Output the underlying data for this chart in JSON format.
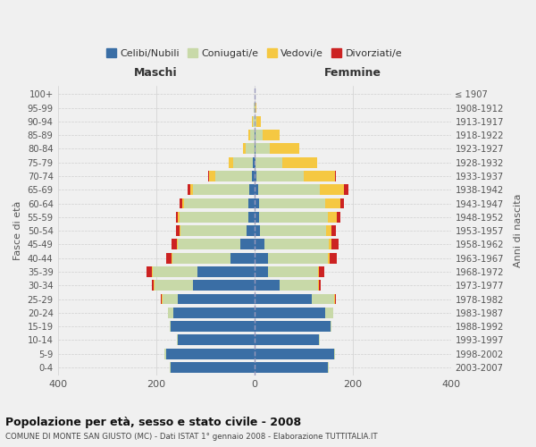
{
  "age_groups": [
    "0-4",
    "5-9",
    "10-14",
    "15-19",
    "20-24",
    "25-29",
    "30-34",
    "35-39",
    "40-44",
    "45-49",
    "50-54",
    "55-59",
    "60-64",
    "65-69",
    "70-74",
    "75-79",
    "80-84",
    "85-89",
    "90-94",
    "95-99",
    "100+"
  ],
  "birth_years": [
    "2003-2007",
    "1998-2002",
    "1993-1997",
    "1988-1992",
    "1983-1987",
    "1978-1982",
    "1973-1977",
    "1968-1972",
    "1963-1967",
    "1958-1962",
    "1953-1957",
    "1948-1952",
    "1943-1947",
    "1938-1942",
    "1933-1937",
    "1928-1932",
    "1923-1927",
    "1918-1922",
    "1913-1917",
    "1908-1912",
    "≤ 1907"
  ],
  "males": {
    "celibi": [
      170,
      180,
      155,
      170,
      165,
      155,
      125,
      115,
      48,
      28,
      15,
      12,
      12,
      10,
      5,
      2,
      0,
      0,
      0,
      0,
      0
    ],
    "coniugati": [
      2,
      2,
      2,
      2,
      10,
      32,
      78,
      92,
      118,
      128,
      135,
      140,
      130,
      115,
      75,
      40,
      18,
      8,
      3,
      1,
      0
    ],
    "vedovi": [
      0,
      0,
      0,
      0,
      0,
      1,
      1,
      2,
      2,
      2,
      2,
      3,
      5,
      5,
      12,
      10,
      5,
      3,
      1,
      0,
      0
    ],
    "divorziati": [
      0,
      0,
      0,
      0,
      1,
      2,
      5,
      10,
      12,
      10,
      8,
      5,
      5,
      5,
      2,
      0,
      0,
      0,
      0,
      0,
      0
    ]
  },
  "females": {
    "nubili": [
      150,
      162,
      132,
      155,
      145,
      118,
      52,
      28,
      28,
      20,
      12,
      10,
      10,
      8,
      5,
      3,
      2,
      2,
      0,
      0,
      0
    ],
    "coniugate": [
      2,
      2,
      2,
      3,
      15,
      45,
      78,
      102,
      122,
      132,
      135,
      140,
      135,
      125,
      95,
      55,
      30,
      15,
      5,
      2,
      0
    ],
    "vedove": [
      0,
      0,
      0,
      0,
      0,
      1,
      1,
      2,
      3,
      5,
      10,
      18,
      30,
      50,
      65,
      70,
      60,
      35,
      8,
      2,
      0
    ],
    "divorziate": [
      0,
      0,
      0,
      0,
      1,
      2,
      5,
      10,
      15,
      15,
      10,
      8,
      8,
      8,
      2,
      1,
      0,
      0,
      0,
      0,
      0
    ]
  },
  "colors": {
    "celibi": "#3A6EA5",
    "coniugati": "#C8D9A8",
    "vedovi": "#F5C842",
    "divorziati": "#CC2222"
  },
  "xlim": 400,
  "title": "Popolazione per età, sesso e stato civile - 2008",
  "subtitle": "COMUNE DI MONTE SAN GIUSTO (MC) - Dati ISTAT 1° gennaio 2008 - Elaborazione TUTTITALIA.IT",
  "ylabel_left": "Fasce di età",
  "ylabel_right": "Anni di nascita",
  "xlabel_left": "Maschi",
  "xlabel_right": "Femmine",
  "legend_labels": [
    "Celibi/Nubili",
    "Coniugati/e",
    "Vedovi/e",
    "Divorziati/e"
  ],
  "bg_color": "#f0f0f0",
  "grid_color": "#d0d0d0"
}
